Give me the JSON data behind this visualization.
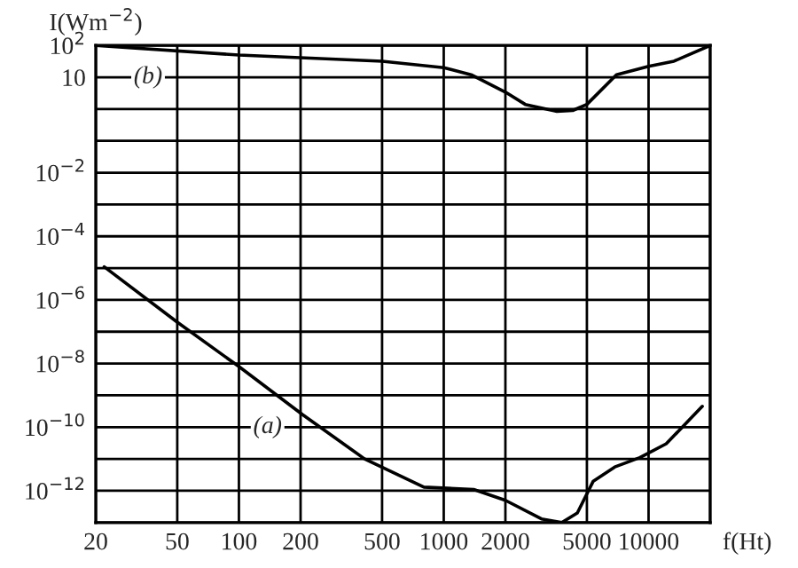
{
  "chart_data": {
    "type": "line",
    "xlabel": "f(Ht)",
    "ylabel": "I(Wm$^{−2}$)",
    "series": [
      {
        "color": "#000000",
        "x": [
          22,
          50,
          100,
          204,
          411,
          800,
          1400,
          2000,
          3000,
          3770,
          4490,
          5370,
          6840,
          9060,
          12200,
          18300
        ],
        "values": [
          1.1e-05,
          2e-07,
          8e-09,
          2.5e-10,
          1e-11,
          1.3e-12,
          1.1e-12,
          5e-13,
          1.3e-13,
          1e-13,
          2e-13,
          2e-12,
          5.6e-12,
          1.1e-11,
          3e-11,
          4.5e-10
        ]
      },
      {
        "color": "#000000",
        "x": [
          20,
          100,
          500,
          1000,
          1360,
          2000,
          2500,
          3570,
          4260,
          5000,
          6970,
          10000,
          13300,
          20000
        ],
        "values": [
          100,
          50,
          32,
          20,
          12,
          3.4,
          1.4,
          0.85,
          0.9,
          1.4,
          12,
          22,
          32,
          100
        ]
      }
    ],
    "annotations": [
      {
        "text": "(a)",
        "x": 138,
        "y": 1e-10
      },
      {
        "text": "(b)",
        "x": 36,
        "y": 10
      }
    ],
    "log": "xy",
    "xlim": [
      20,
      20000
    ],
    "ylim": [
      1e-13,
      100
    ],
    "xticks": [
      20,
      50,
      100,
      200,
      500,
      1000,
      2000,
      5000,
      10000,
      {
        "value": 20000,
        "label": null
      }
    ],
    "yticks": [
      {
        "value": 1e-13,
        "label": null
      },
      {
        "value": 1e-12,
        "label": "10$^{−12}$"
      },
      {
        "value": 1e-11,
        "label": null
      },
      {
        "value": 1e-10,
        "label": "10$^{−10}$"
      },
      {
        "value": 1e-09,
        "label": null
      },
      {
        "value": 1e-08,
        "label": "10$^{−8}$"
      },
      {
        "value": 1e-07,
        "label": null
      },
      {
        "value": 1e-06,
        "label": "10$^{−6}$"
      },
      {
        "value": 1e-05,
        "label": null
      },
      {
        "value": 0.0001,
        "label": "10$^{−4}$"
      },
      {
        "value": 0.001,
        "label": null
      },
      {
        "value": 0.01,
        "label": "10$^{−2}$"
      },
      {
        "value": 0.1,
        "label": null
      },
      {
        "value": 1,
        "label": null
      },
      {
        "value": 10,
        "label": "10"
      },
      {
        "value": 100,
        "label": "10$^{2}$"
      }
    ],
    "grid": true,
    "legend": false
  }
}
